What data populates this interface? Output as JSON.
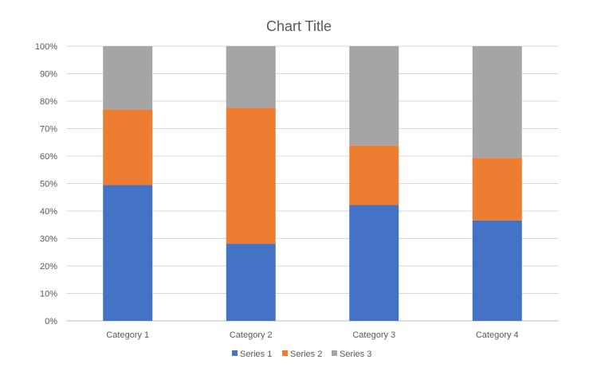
{
  "chart_data": {
    "type": "bar",
    "stacked": "percent",
    "title": "Chart Title",
    "categories": [
      "Category 1",
      "Category 2",
      "Category 3",
      "Category 4"
    ],
    "series": [
      {
        "name": "Series 1",
        "color": "#4472C4",
        "values": [
          4.3,
          2.5,
          3.5,
          4.5
        ]
      },
      {
        "name": "Series 2",
        "color": "#ED7D31",
        "values": [
          2.4,
          4.4,
          1.8,
          2.8
        ]
      },
      {
        "name": "Series 3",
        "color": "#A5A5A5",
        "values": [
          2,
          2,
          3,
          5
        ]
      }
    ],
    "ylim": [
      0,
      100
    ],
    "yticks": [
      "0%",
      "10%",
      "20%",
      "30%",
      "40%",
      "50%",
      "60%",
      "70%",
      "80%",
      "90%",
      "100%"
    ],
    "grid": true,
    "legend_position": "bottom"
  }
}
